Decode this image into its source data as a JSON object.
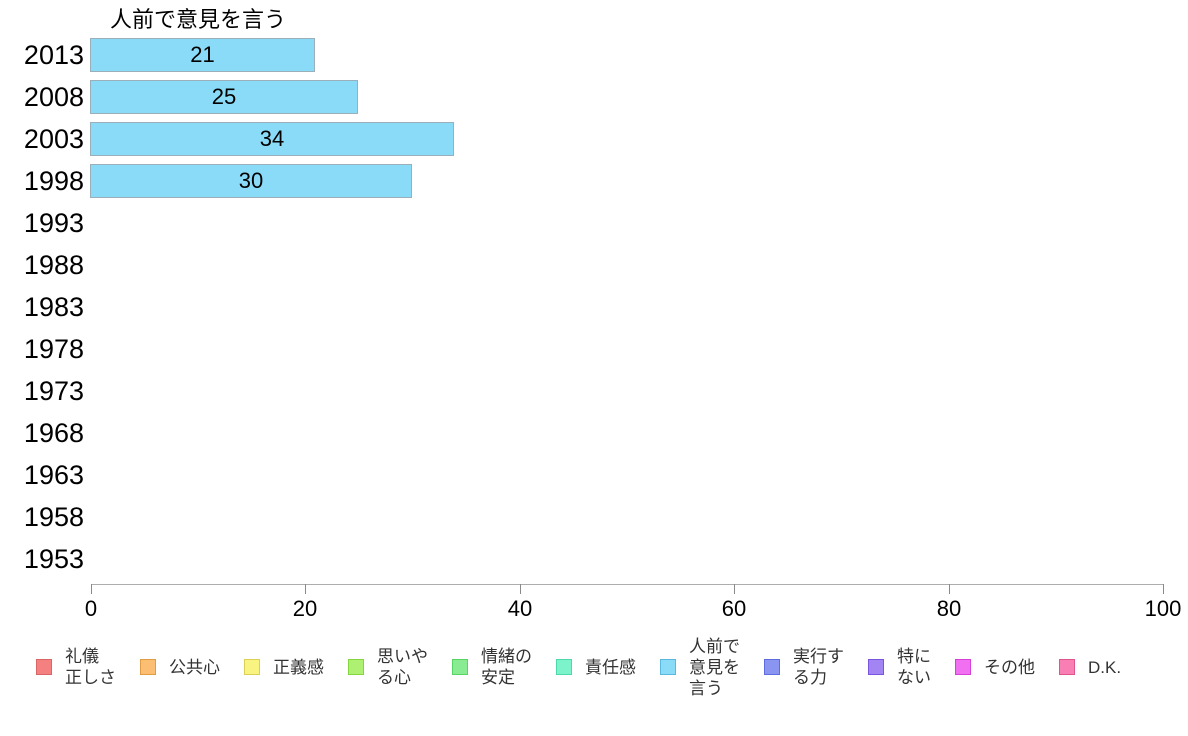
{
  "chart_data": {
    "type": "bar",
    "orientation": "horizontal",
    "title": "人前で意見を言う",
    "categories": [
      "2013",
      "2008",
      "2003",
      "1998",
      "1993",
      "1988",
      "1983",
      "1978",
      "1973",
      "1968",
      "1963",
      "1958",
      "1953"
    ],
    "values": [
      21,
      25,
      34,
      30,
      null,
      null,
      null,
      null,
      null,
      null,
      null,
      null,
      null
    ],
    "xlabel": "",
    "ylabel": "",
    "xlim": [
      0,
      100
    ],
    "x_ticks": [
      0,
      20,
      40,
      60,
      80,
      100
    ],
    "grid": false,
    "legend_position": "bottom",
    "bar_color": "#8adbf8",
    "bar_border_color": "#9aafba",
    "colors": {
      "axis_line": "#adadad",
      "tick": "#8a8a8a",
      "axis_text": "#000000",
      "legend_text": "#333333",
      "background": "#ffffff"
    },
    "legend": [
      {
        "label": "礼儀\n正しさ",
        "color": "#f58080",
        "border": "#d96666"
      },
      {
        "label": "公共心",
        "color": "#fbbe73",
        "border": "#e09b45"
      },
      {
        "label": "正義感",
        "color": "#f9f381",
        "border": "#d9d055"
      },
      {
        "label": "思いや\nる心",
        "color": "#aef172",
        "border": "#84d640"
      },
      {
        "label": "情緒の\n安定",
        "color": "#8aec92",
        "border": "#58d464"
      },
      {
        "label": "責任感",
        "color": "#7df3cc",
        "border": "#4cdba8"
      },
      {
        "label": "人前で\n意見を\n言う",
        "color": "#8adbf8",
        "border": "#5bb8dc"
      },
      {
        "label": "実行す\nる力",
        "color": "#8a95f2",
        "border": "#5f6cde"
      },
      {
        "label": "特に\nない",
        "color": "#a284f2",
        "border": "#7c55de"
      },
      {
        "label": "その他",
        "color": "#f16ff1",
        "border": "#d441d4"
      },
      {
        "label": "D.K.",
        "color": "#f87eb3",
        "border": "#e0548c"
      }
    ]
  }
}
